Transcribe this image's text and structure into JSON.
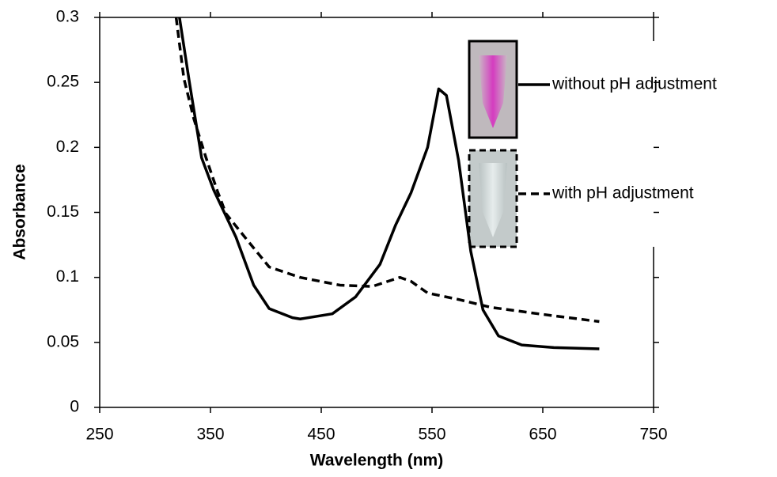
{
  "chart_data": {
    "type": "line",
    "x_label": "Wavelength (nm)",
    "y_label": "Absorbance",
    "xlim": [
      250,
      750
    ],
    "xticks": [
      250,
      350,
      450,
      550,
      650,
      750
    ],
    "ylim": [
      0,
      0.3
    ],
    "yticks": [
      0,
      0.05,
      0.1,
      0.15,
      0.2,
      0.25,
      0.3
    ],
    "series": [
      {
        "name": "without pH adjustment",
        "color": "#000000",
        "dash": false,
        "x": [
          322,
          331,
          342,
          353,
          373,
          389,
          403,
          424,
          431,
          460,
          481,
          503,
          517,
          531,
          546,
          556,
          563,
          574,
          585,
          596,
          610,
          631,
          660,
          701
        ],
        "values": [
          0.3,
          0.25,
          0.192,
          0.167,
          0.131,
          0.094,
          0.076,
          0.069,
          0.068,
          0.072,
          0.085,
          0.11,
          0.14,
          0.165,
          0.2,
          0.245,
          0.24,
          0.19,
          0.12,
          0.075,
          0.055,
          0.048,
          0.046,
          0.045
        ]
      },
      {
        "name": "with pH adjustment",
        "color": "#000000",
        "dash": true,
        "x": [
          319,
          326,
          335,
          346,
          356,
          364,
          381,
          403,
          431,
          467,
          496,
          521,
          531,
          546,
          574,
          603,
          646,
          701
        ],
        "values": [
          0.3,
          0.253,
          0.222,
          0.192,
          0.167,
          0.149,
          0.131,
          0.108,
          0.1,
          0.094,
          0.093,
          0.1,
          0.097,
          0.088,
          0.083,
          0.077,
          0.072,
          0.066
        ]
      }
    ]
  }
}
